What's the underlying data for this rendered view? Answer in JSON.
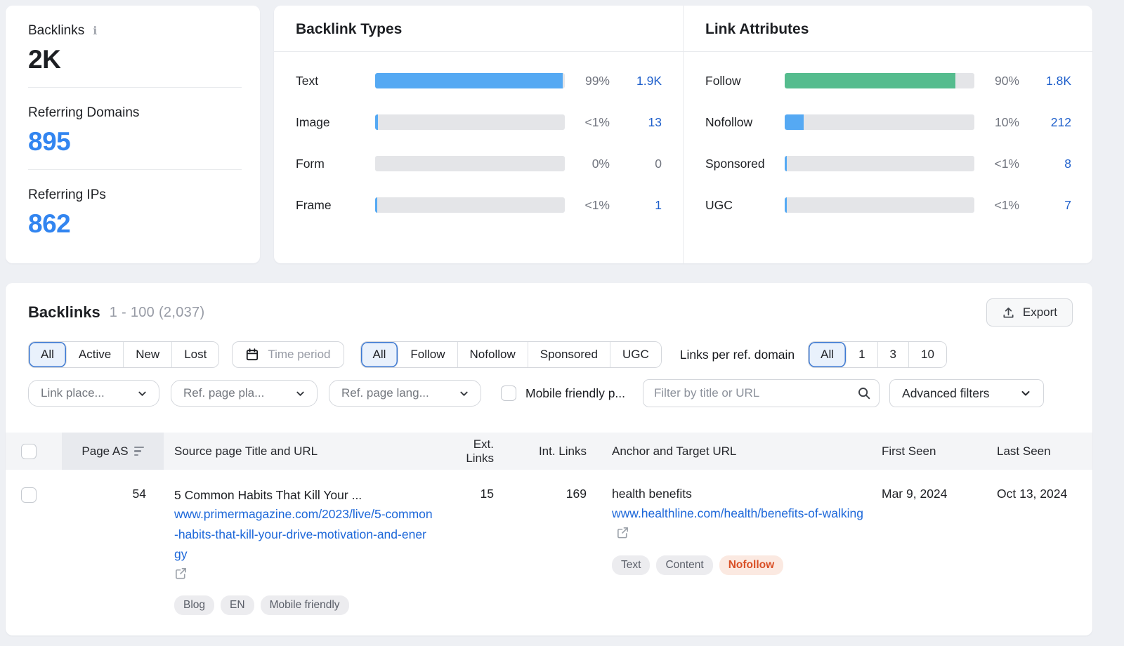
{
  "icons": {
    "info": "i"
  },
  "colors": {
    "page-bg": "#eef0f4",
    "card-bg": "#ffffff",
    "bar-blue": "#55a9f3",
    "bar-green": "#55bc8e",
    "bar-track": "#e4e5e8",
    "link-blue": "#1e5fcb",
    "url-blue": "#1c67d9",
    "stat-blue": "#3285f0",
    "text-primary": "#1d1f23",
    "text-gray": "#70747e",
    "text-light-gray": "#979ba5",
    "border": "#d4d7dc",
    "divider": "#e8eaed",
    "selected-bg": "#e9f1fc",
    "selected-border": "#3d79d2",
    "header-bg": "#f4f5f7",
    "sorted-col-bg": "#e8eaee",
    "tag-bg": "#ececef",
    "tag-text": "#5a5e68",
    "nofollow-bg": "#fbe9e1",
    "nofollow-text": "#d94f26"
  },
  "overview": {
    "backlinks": {
      "label": "Backlinks",
      "value": "2K"
    },
    "referring_domains": {
      "label": "Referring Domains",
      "value": "895"
    },
    "referring_ips": {
      "label": "Referring IPs",
      "value": "862"
    }
  },
  "backlink_types": {
    "title": "Backlink Types",
    "rows": [
      {
        "label": "Text",
        "percent": "99%",
        "value": "1.9K",
        "fill": 99
      },
      {
        "label": "Image",
        "percent": "<1%",
        "value": "13",
        "fill": 1.5
      },
      {
        "label": "Form",
        "percent": "0%",
        "value": "0",
        "fill": 0
      },
      {
        "label": "Frame",
        "percent": "<1%",
        "value": "1",
        "fill": 1
      }
    ]
  },
  "link_attributes": {
    "title": "Link Attributes",
    "rows": [
      {
        "label": "Follow",
        "percent": "90%",
        "value": "1.8K",
        "fill": 90
      },
      {
        "label": "Nofollow",
        "percent": "10%",
        "value": "212",
        "fill": 10
      },
      {
        "label": "Sponsored",
        "percent": "<1%",
        "value": "8",
        "fill": 1
      },
      {
        "label": "UGC",
        "percent": "<1%",
        "value": "7",
        "fill": 1
      }
    ]
  },
  "table_section": {
    "title": "Backlinks",
    "range": "1 - 100 (2,037)",
    "export_label": "Export",
    "filters": {
      "status_tabs": {
        "all": "All",
        "active": "Active",
        "new": "New",
        "lost": "Lost"
      },
      "time_period_label": "Time period",
      "attr_tabs": {
        "all": "All",
        "follow": "Follow",
        "nofollow": "Nofollow",
        "sponsored": "Sponsored",
        "ugc": "UGC"
      },
      "links_per_domain_label": "Links per ref. domain",
      "links_per_domain_tabs": {
        "all": "All",
        "one": "1",
        "three": "3",
        "ten": "10"
      },
      "link_placement_label": "Link place...",
      "ref_page_platform_label": "Ref. page pla...",
      "ref_page_language_label": "Ref. page lang...",
      "mobile_friendly_label": "Mobile friendly p...",
      "search_placeholder": "Filter by title or URL",
      "advanced_filters_label": "Advanced filters"
    },
    "columns": {
      "page_as": "Page AS",
      "source": "Source page Title and URL",
      "ext_links": "Ext. Links",
      "int_links": "Int. Links",
      "anchor": "Anchor and Target URL",
      "first_seen": "First Seen",
      "last_seen": "Last Seen"
    },
    "rows": [
      {
        "page_as": "54",
        "source_title": "5 Common Habits That Kill Your ...",
        "source_url": "www.primermagazine.com/2023/live/5-common-habits-that-kill-your-drive-motivation-and-energy",
        "source_tags": [
          "Blog",
          "EN",
          "Mobile friendly"
        ],
        "ext_links": "15",
        "int_links": "169",
        "anchor": "health benefits",
        "target_url": "www.healthline.com/health/benefits-of-walking",
        "target_tags": [
          "Text",
          "Content"
        ],
        "target_tag_warning": "Nofollow",
        "first_seen": "Mar 9, 2024",
        "last_seen": "Oct 13, 2024"
      }
    ]
  }
}
